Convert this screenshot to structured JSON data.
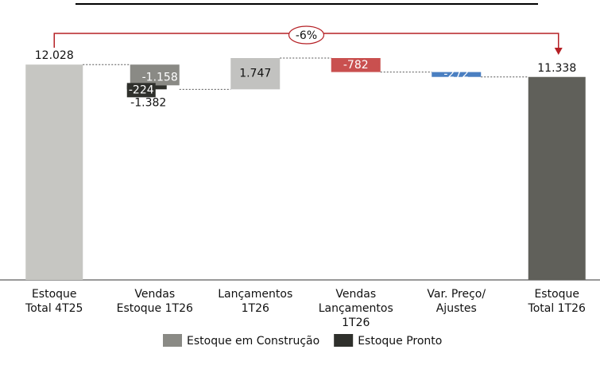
{
  "chart_data": {
    "type": "waterfall",
    "categories": [
      "Estoque\nTotal 4T25",
      "Vendas\nEstoque 1T26",
      "Lançamentos\n1T26",
      "Vendas\nLançamentos\n1T26",
      "Var. Preço/\nAjustes",
      "Estoque\nTotal  1T26"
    ],
    "values": [
      12028,
      -1382,
      1747,
      -782,
      -272,
      11338
    ],
    "value_labels": [
      "12.028",
      "-1.382",
      "1.747",
      "-782",
      "-272",
      "11.338"
    ],
    "totals": [
      true,
      false,
      false,
      false,
      false,
      true
    ],
    "colors": [
      "#c6c6c2",
      null,
      "#c2c2c0",
      "#c9504f",
      "#4a7fc1",
      "#60605a"
    ],
    "series": [
      {
        "name": "Estoque em Construção",
        "color": "#8a8a85",
        "values": [
          null,
          -1158,
          null,
          null,
          null,
          null
        ],
        "value_labels": [
          null,
          "-1.158",
          null,
          null,
          null,
          null
        ]
      },
      {
        "name": "Estoque Pronto",
        "color": "#2f302c",
        "values": [
          null,
          -224,
          null,
          null,
          null,
          null
        ],
        "value_labels": [
          null,
          "-224",
          null,
          null,
          null,
          null
        ]
      }
    ],
    "annotation": "-6%"
  }
}
